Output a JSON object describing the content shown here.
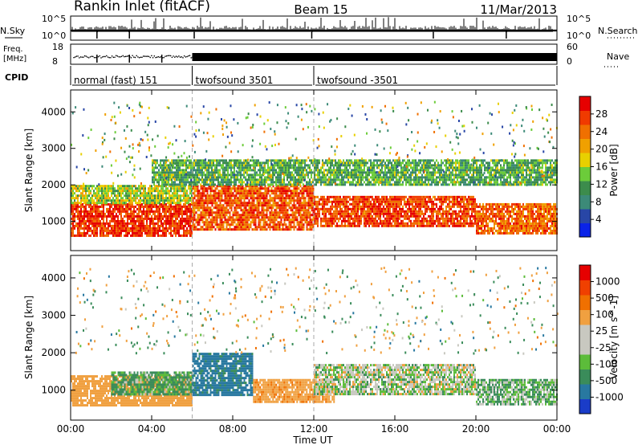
{
  "header": {
    "station": "Rankin Inlet (fitACF)",
    "beam": "Beam 15",
    "date": "11/Mar/2013"
  },
  "summary": {
    "nsky_label": "N.Sky",
    "nsky_ticks": [
      "10^5",
      "10^0"
    ],
    "nsearch_label": "N.Search",
    "nsearch_ticks": [
      "10^5",
      "10^0"
    ],
    "freq_label_1": "Freq.",
    "freq_label_2": "[MHz]",
    "freq_ticks": [
      "18",
      "8"
    ],
    "nave_label": "Nave",
    "nave_ticks": [
      "60",
      "0"
    ],
    "cpid_label": "CPID",
    "cpid_segments": [
      {
        "label": "normal (fast) 151",
        "start_hour": 0,
        "end_hour": 6
      },
      {
        "label": "twofsound 3501",
        "start_hour": 6,
        "end_hour": 12
      },
      {
        "label": "twofsound -3501",
        "start_hour": 12,
        "end_hour": 24
      }
    ]
  },
  "chart_data": [
    {
      "type": "heatmap",
      "panel": "power",
      "xlabel": "Time UT",
      "ylabel": "Slant Range [km]",
      "x_ticks": [
        "00:00",
        "04:00",
        "08:00",
        "12:00",
        "16:00",
        "20:00",
        "00:00"
      ],
      "x_range_hours": [
        0,
        24
      ],
      "y_ticks": [
        1000,
        2000,
        3000,
        4000
      ],
      "ylim": [
        200,
        4600
      ],
      "colorbar_label": "Power [dB]",
      "colorbar_ticks": [
        "4",
        "8",
        "12",
        "16",
        "20",
        "24",
        "28"
      ],
      "colorbar_colors": [
        "#0a23e8",
        "#2846a6",
        "#3c8a78",
        "#3c8c4c",
        "#6ccc3a",
        "#e8d000",
        "#f0a000",
        "#f07000",
        "#f03a00",
        "#e60000"
      ],
      "regions": [
        {
          "h0": 0,
          "h1": 6,
          "r0": 600,
          "r1": 1500,
          "value": 28
        },
        {
          "h0": 0,
          "h1": 6,
          "r0": 1500,
          "r1": 2000,
          "value": 16
        },
        {
          "h0": 6,
          "h1": 12,
          "r0": 800,
          "r1": 2000,
          "value": 26
        },
        {
          "h0": 12,
          "h1": 20,
          "r0": 900,
          "r1": 1700,
          "value": 27
        },
        {
          "h0": 20,
          "h1": 24,
          "r0": 700,
          "r1": 1500,
          "value": 25
        },
        {
          "h0": 4,
          "h1": 24,
          "r0": 2000,
          "r1": 2700,
          "value": 12
        }
      ]
    },
    {
      "type": "heatmap",
      "panel": "velocity",
      "xlabel": "Time UT",
      "ylabel": "Slant Range [km]",
      "x_ticks": [
        "00:00",
        "04:00",
        "08:00",
        "12:00",
        "16:00",
        "20:00",
        "00:00"
      ],
      "x_range_hours": [
        0,
        24
      ],
      "y_ticks": [
        1000,
        2000,
        3000,
        4000
      ],
      "ylim": [
        200,
        4600
      ],
      "colorbar_label": "Velocity [m s^-1]",
      "colorbar_ticks": [
        "1000",
        "500",
        "100",
        "25",
        "-25",
        "-100",
        "-500",
        "-1000"
      ],
      "colorbar_colors": [
        "#1a3cc8",
        "#2878a0",
        "#3a8c5a",
        "#5cbc3a",
        "#c8c8c0",
        "#c8c8c0",
        "#f0a040",
        "#f07000",
        "#f04000",
        "#e60000"
      ],
      "regions": [
        {
          "h0": 0,
          "h1": 6,
          "r0": 600,
          "r1": 1400,
          "value": -300
        },
        {
          "h0": 2,
          "h1": 6,
          "r0": 900,
          "r1": 1500,
          "value": 150
        },
        {
          "h0": 6,
          "h1": 9,
          "r0": 900,
          "r1": 2000,
          "value": 600
        },
        {
          "h0": 9,
          "h1": 13,
          "r0": 700,
          "r1": 1300,
          "value": -400
        },
        {
          "h0": 12,
          "h1": 20,
          "r0": 900,
          "r1": 1700,
          "value": 0
        },
        {
          "h0": 20,
          "h1": 24,
          "r0": 600,
          "r1": 1300,
          "value": 80
        }
      ]
    }
  ]
}
